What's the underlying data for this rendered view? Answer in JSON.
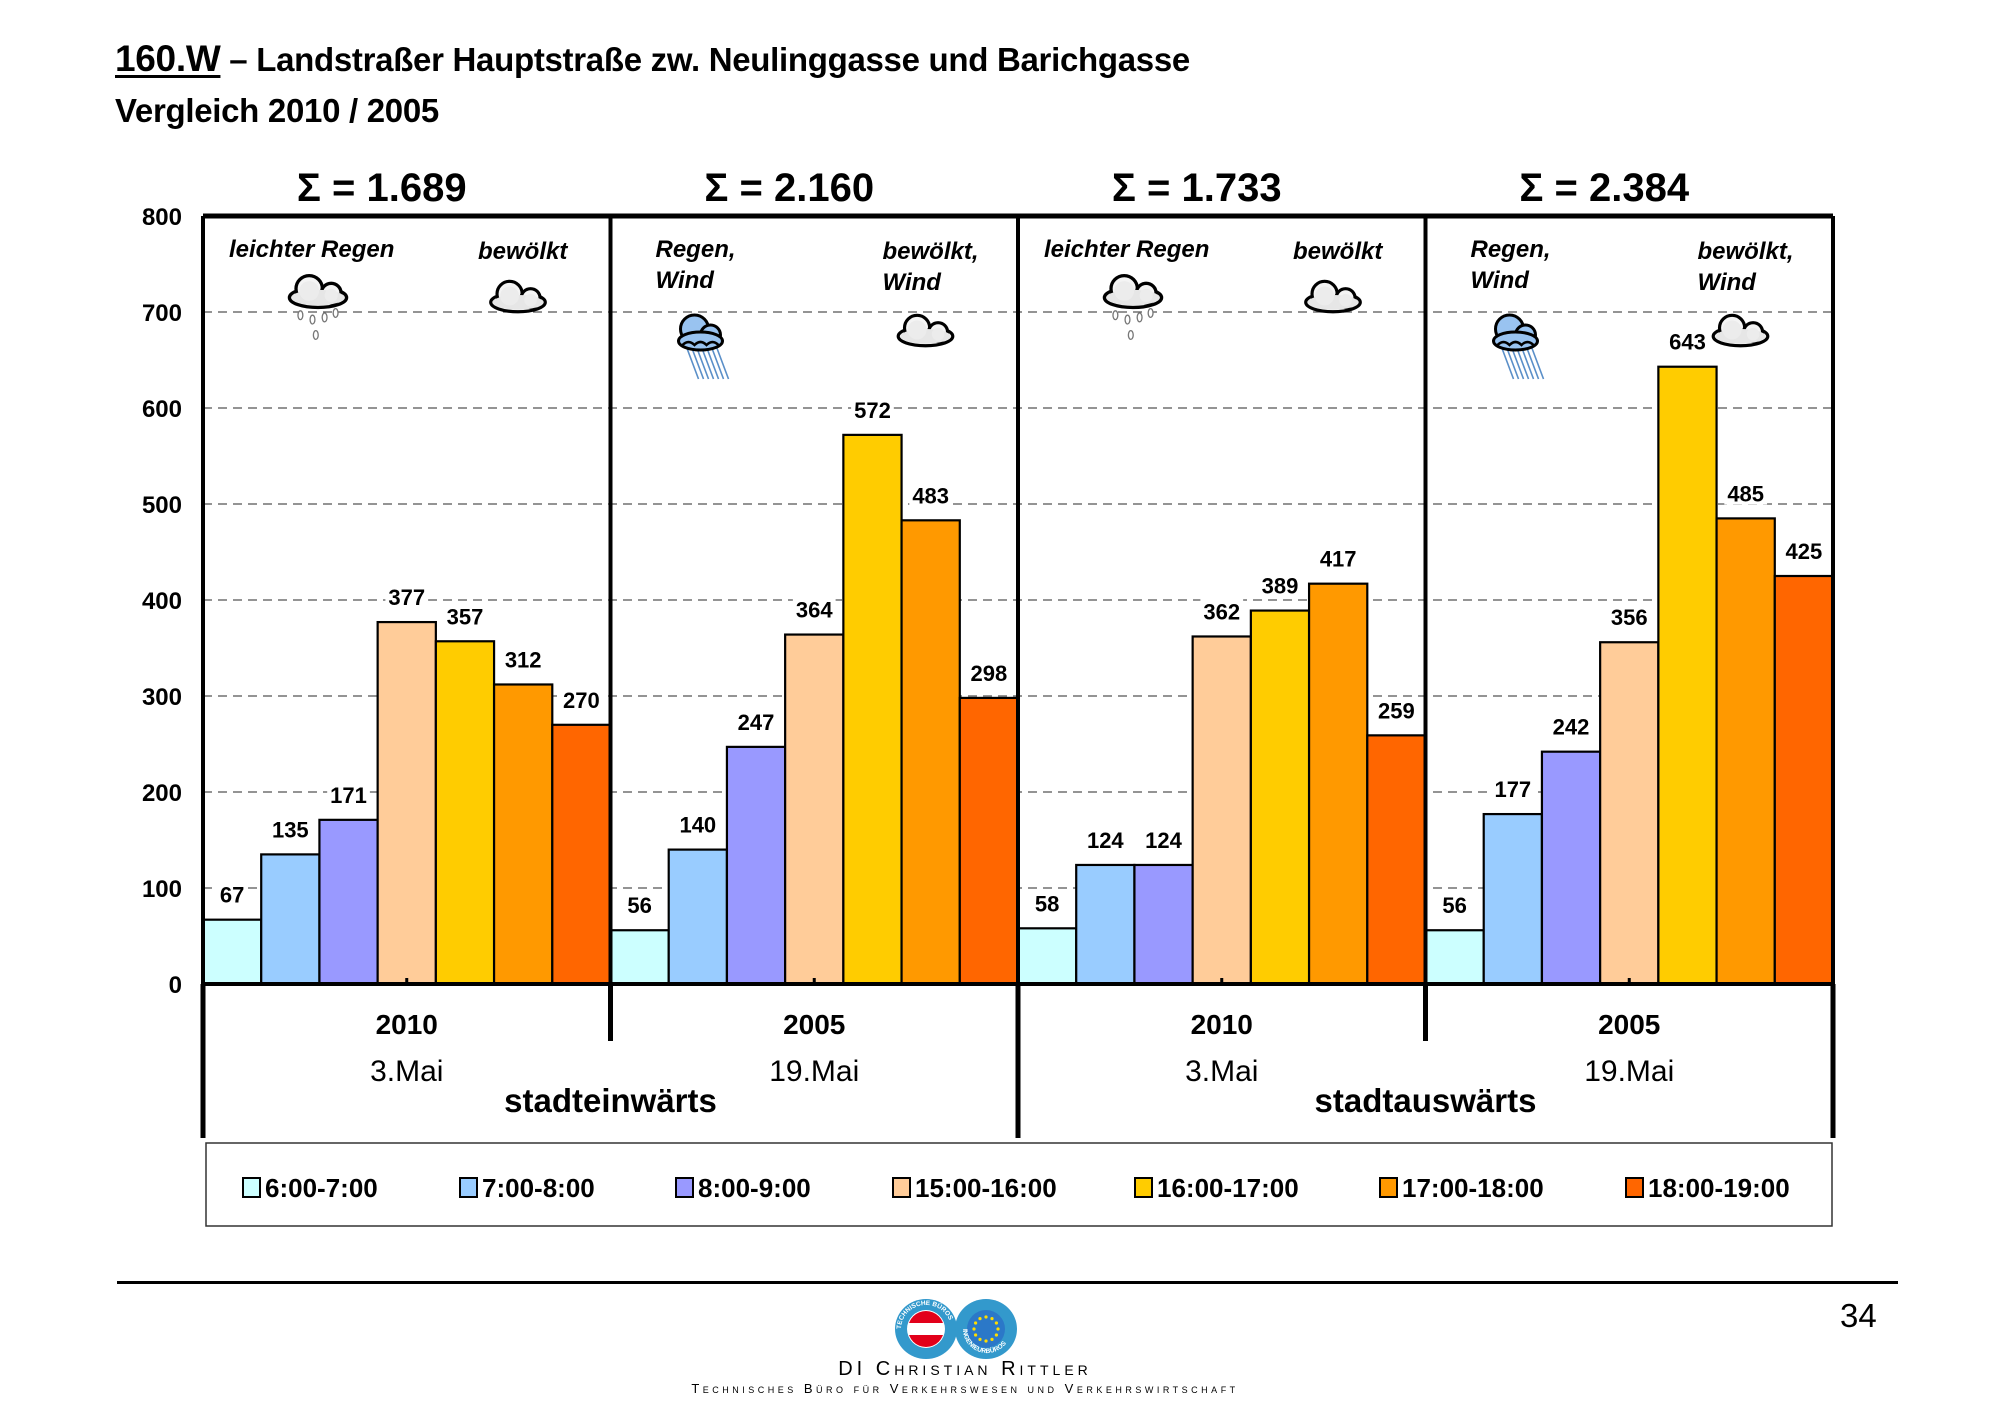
{
  "header": {
    "code": "160.W",
    "title_rest": " – Landstraßer Hauptstraße zw. Neulinggasse und Barichgasse",
    "subtitle": "Vergleich 2010 / 2005"
  },
  "chart_data": {
    "type": "bar",
    "title": "160.W – Landstraßer Hauptstraße zw. Neulinggasse und Barichgasse",
    "subtitle": "Vergleich 2010 / 2005",
    "xlabel": "",
    "ylabel": "",
    "ylim": [
      0,
      800
    ],
    "yticks": [
      0,
      100,
      200,
      300,
      400,
      500,
      600,
      700,
      800
    ],
    "grid": true,
    "legend_position": "bottom",
    "series_names": [
      "6:00-7:00",
      "7:00-8:00",
      "8:00-9:00",
      "15:00-16:00",
      "16:00-17:00",
      "17:00-18:00",
      "18:00-19:00"
    ],
    "series_colors": [
      "#CCFFFF",
      "#99CCFF",
      "#9999FF",
      "#FFCC99",
      "#FFCC00",
      "#FF9900",
      "#FF6600"
    ],
    "groups": [
      {
        "year": "2010",
        "date": "3.Mai",
        "direction": "stadteinwärts",
        "sum_label": "Σ = 1.689",
        "weather_left": [
          "leichter Regen"
        ],
        "weather_left_icon": "light-rain",
        "weather_right": [
          "bewölkt"
        ],
        "weather_right_icon": "cloudy",
        "values": [
          67,
          135,
          171,
          377,
          357,
          312,
          270
        ]
      },
      {
        "year": "2005",
        "date": "19.Mai",
        "direction": "stadteinwärts",
        "sum_label": "Σ = 2.160",
        "weather_left": [
          "Regen,",
          "Wind"
        ],
        "weather_left_icon": "rain-wind",
        "weather_right": [
          "bewölkt,",
          "Wind"
        ],
        "weather_right_icon": "cloudy",
        "values": [
          56,
          140,
          247,
          364,
          572,
          483,
          298
        ]
      },
      {
        "year": "2010",
        "date": "3.Mai",
        "direction": "stadtauswärts",
        "sum_label": "Σ = 1.733",
        "weather_left": [
          "leichter Regen"
        ],
        "weather_left_icon": "light-rain",
        "weather_right": [
          "bewölkt"
        ],
        "weather_right_icon": "cloudy",
        "values": [
          58,
          124,
          124,
          362,
          389,
          417,
          259
        ]
      },
      {
        "year": "2005",
        "date": "19.Mai",
        "direction": "stadtauswärts",
        "sum_label": "Σ = 2.384",
        "weather_left": [
          "Regen,",
          "Wind"
        ],
        "weather_left_icon": "rain-wind",
        "weather_right": [
          "bewölkt,",
          "Wind"
        ],
        "weather_right_icon": "cloudy",
        "values": [
          56,
          177,
          242,
          356,
          643,
          485,
          425
        ]
      }
    ],
    "directions": [
      "stadteinwärts",
      "stadtauswärts"
    ]
  },
  "footer": {
    "page_number": "34",
    "company": "DI Christian Rittler",
    "tagline": "Technisches Büro für Verkehrswesen und Verkehrswirtschaft",
    "logo_left_text": "TECHNISCHE BÜROS",
    "logo_right_text": "INGENIEURBÜROS"
  }
}
